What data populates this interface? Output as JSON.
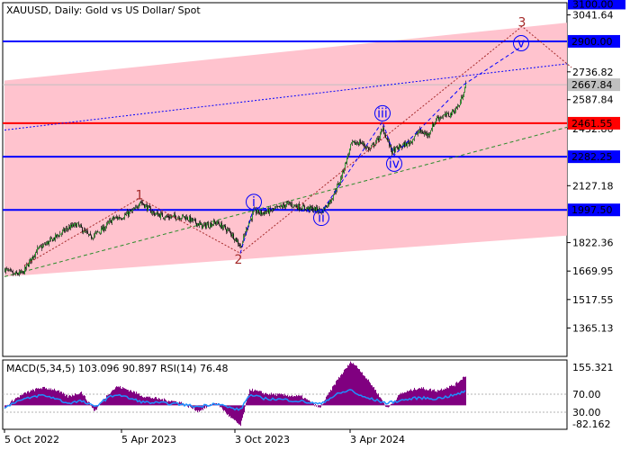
{
  "chart_data": {
    "type": "candlestick",
    "title": "XAUUSD, Daily:  Gold vs US Dollar/ Spot",
    "price_axis": {
      "min": 1213.0,
      "max": 3107.0,
      "ticks": [
        "3041.64",
        "2736.82",
        "2587.84",
        "2432.86",
        "2127.18",
        "1822.36",
        "1669.95",
        "1517.55",
        "1365.13"
      ],
      "top_label": "3100.00"
    },
    "date_axis": {
      "labels": [
        "5 Oct 2022",
        "5 Apr 2023",
        "3 Oct 2023",
        "3 Apr 2024"
      ],
      "label_bar_index": [
        0,
        130,
        256,
        384
      ]
    },
    "levels": [
      {
        "price": 2900.0,
        "label": "2900.00",
        "color": "#0000ff"
      },
      {
        "price": 2461.55,
        "label": "2461.55",
        "color": "#ff0000"
      },
      {
        "price": 2282.25,
        "label": "2282.25",
        "color": "#0000ff"
      },
      {
        "price": 1997.5,
        "label": "1997.50",
        "color": "#0000ff"
      }
    ],
    "current_price": {
      "price": 2667.84,
      "label": "2667.84"
    },
    "channel": {
      "upper": {
        "x1": 0,
        "y1": 2690,
        "x2": 630,
        "y2": 3000
      },
      "lower": {
        "x1": 0,
        "y1": 1640,
        "x2": 630,
        "y2": 1860
      },
      "color": "#ffc0cb"
    },
    "trendlines": [
      {
        "x1": 0,
        "y1": 2425,
        "x2": 630,
        "y2": 2780,
        "color": "#0000ff",
        "style": "dotted"
      },
      {
        "x1": 0,
        "y1": 1640,
        "x2": 630,
        "y2": 2440,
        "color": "#2a8c2a",
        "style": "dashed"
      }
    ],
    "waves": [
      {
        "label": "1",
        "x": 150,
        "y": 2075,
        "color": "#a52a2a",
        "circled": false
      },
      {
        "label": "2",
        "x": 260,
        "y": 1730,
        "color": "#a52a2a",
        "circled": false
      },
      {
        "label": "3",
        "x": 575,
        "y": 3000,
        "color": "#a52a2a",
        "circled": false
      },
      {
        "label": "i",
        "x": 277,
        "y": 2040,
        "color": "#0000ff",
        "circled": true
      },
      {
        "label": "ii",
        "x": 352,
        "y": 1955,
        "color": "#0000ff",
        "circled": true
      },
      {
        "label": "iii",
        "x": 420,
        "y": 2515,
        "color": "#0000ff",
        "circled": true
      },
      {
        "label": "iv",
        "x": 433,
        "y": 2245,
        "color": "#0000ff",
        "circled": true
      },
      {
        "label": "v",
        "x": 574,
        "y": 2890,
        "color": "#0000ff",
        "circled": true
      }
    ],
    "wave_paths": [
      {
        "points": [
          [
            22,
            1700
          ],
          [
            150,
            2060
          ],
          [
            262,
            1765
          ],
          [
            575,
            2980
          ],
          [
            630,
            2760
          ]
        ],
        "color": "#a52a2a",
        "style": "dotted"
      },
      {
        "points": [
          [
            262,
            1765
          ],
          [
            277,
            2010
          ],
          [
            352,
            1985
          ],
          [
            420,
            2470
          ],
          [
            433,
            2290
          ],
          [
            510,
            2667
          ],
          [
            574,
            2870
          ]
        ],
        "color": "#0000ff",
        "style": "dashed"
      }
    ],
    "candle_anchors": [
      [
        0,
        1680
      ],
      [
        10,
        1650
      ],
      [
        20,
        1660
      ],
      [
        35,
        1780
      ],
      [
        50,
        1830
      ],
      [
        70,
        1900
      ],
      [
        80,
        1920
      ],
      [
        95,
        1850
      ],
      [
        110,
        1900
      ],
      [
        120,
        1950
      ],
      [
        130,
        1960
      ],
      [
        145,
        2000
      ],
      [
        150,
        2045
      ],
      [
        165,
        1980
      ],
      [
        180,
        1960
      ],
      [
        200,
        1960
      ],
      [
        220,
        1910
      ],
      [
        235,
        1930
      ],
      [
        250,
        1880
      ],
      [
        258,
        1830
      ],
      [
        262,
        1800
      ],
      [
        270,
        1920
      ],
      [
        277,
        1990
      ],
      [
        285,
        1980
      ],
      [
        300,
        2000
      ],
      [
        315,
        2030
      ],
      [
        330,
        2010
      ],
      [
        345,
        2000
      ],
      [
        352,
        1990
      ],
      [
        362,
        2050
      ],
      [
        372,
        2150
      ],
      [
        385,
        2350
      ],
      [
        395,
        2360
      ],
      [
        405,
        2320
      ],
      [
        415,
        2380
      ],
      [
        420,
        2430
      ],
      [
        430,
        2310
      ],
      [
        437,
        2330
      ],
      [
        450,
        2360
      ],
      [
        460,
        2420
      ],
      [
        470,
        2400
      ],
      [
        480,
        2490
      ],
      [
        495,
        2510
      ],
      [
        505,
        2560
      ],
      [
        512,
        2667
      ]
    ],
    "indicator": {
      "label": "MACD(5,34,5) 103.096 90.897 RSI(14) 76.48",
      "ticks": [
        "155.321",
        "70.00",
        "30.00",
        "-82.162"
      ],
      "macd_color": "#800080",
      "rsi_color": "#1e90ff",
      "macd_anchors": [
        [
          0,
          -10
        ],
        [
          10,
          20
        ],
        [
          25,
          45
        ],
        [
          40,
          60
        ],
        [
          55,
          55
        ],
        [
          70,
          30
        ],
        [
          85,
          45
        ],
        [
          100,
          -20
        ],
        [
          115,
          40
        ],
        [
          125,
          65
        ],
        [
          140,
          50
        ],
        [
          155,
          30
        ],
        [
          175,
          20
        ],
        [
          195,
          10
        ],
        [
          215,
          -20
        ],
        [
          235,
          10
        ],
        [
          250,
          -40
        ],
        [
          262,
          -70
        ],
        [
          272,
          55
        ],
        [
          290,
          40
        ],
        [
          310,
          35
        ],
        [
          330,
          30
        ],
        [
          350,
          -10
        ],
        [
          370,
          90
        ],
        [
          385,
          150
        ],
        [
          395,
          120
        ],
        [
          410,
          60
        ],
        [
          425,
          -10
        ],
        [
          440,
          40
        ],
        [
          460,
          60
        ],
        [
          480,
          50
        ],
        [
          500,
          70
        ],
        [
          512,
          103
        ]
      ],
      "rsi_anchors": [
        [
          0,
          38
        ],
        [
          10,
          52
        ],
        [
          25,
          60
        ],
        [
          40,
          68
        ],
        [
          55,
          62
        ],
        [
          70,
          50
        ],
        [
          85,
          55
        ],
        [
          100,
          42
        ],
        [
          115,
          62
        ],
        [
          125,
          70
        ],
        [
          140,
          60
        ],
        [
          155,
          52
        ],
        [
          175,
          50
        ],
        [
          195,
          48
        ],
        [
          215,
          42
        ],
        [
          235,
          50
        ],
        [
          250,
          40
        ],
        [
          262,
          35
        ],
        [
          272,
          68
        ],
        [
          290,
          60
        ],
        [
          310,
          58
        ],
        [
          330,
          54
        ],
        [
          350,
          48
        ],
        [
          370,
          70
        ],
        [
          385,
          80
        ],
        [
          395,
          66
        ],
        [
          410,
          58
        ],
        [
          425,
          50
        ],
        [
          440,
          56
        ],
        [
          460,
          62
        ],
        [
          480,
          60
        ],
        [
          500,
          68
        ],
        [
          512,
          76
        ]
      ]
    }
  }
}
